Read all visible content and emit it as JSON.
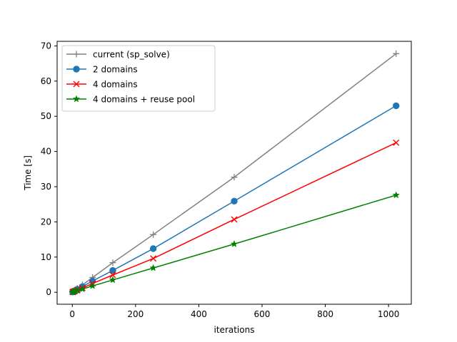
{
  "chart_data": {
    "type": "line",
    "title": "",
    "xlabel": "iterations",
    "ylabel": "Time [s]",
    "xlim": [
      -48,
      1072
    ],
    "ylim": [
      -3.4,
      71.3
    ],
    "xticks": [
      0,
      200,
      400,
      600,
      800,
      1000
    ],
    "yticks": [
      0,
      10,
      20,
      30,
      40,
      50,
      60,
      70
    ],
    "grid": false,
    "legend": "top-left",
    "series": [
      {
        "name": "current (sp_solve)",
        "color": "#808080",
        "marker": "plus",
        "x": [
          1,
          2,
          4,
          8,
          16,
          32,
          64,
          128,
          256,
          512,
          1024
        ],
        "y": [
          0.1,
          0.15,
          0.3,
          0.55,
          1.1,
          2.1,
          4.2,
          8.4,
          16.4,
          32.7,
          67.8
        ]
      },
      {
        "name": "2 domains",
        "color": "#1f77b4",
        "marker": "circle",
        "x": [
          1,
          2,
          4,
          8,
          16,
          32,
          64,
          128,
          256,
          512,
          1024
        ],
        "y": [
          0.08,
          0.12,
          0.25,
          0.45,
          0.85,
          1.6,
          3.2,
          6.2,
          12.4,
          25.9,
          53.0
        ]
      },
      {
        "name": "4 domains",
        "color": "#ff0000",
        "marker": "x",
        "x": [
          1,
          2,
          4,
          8,
          16,
          32,
          64,
          128,
          256,
          512,
          1024
        ],
        "y": [
          0.07,
          0.1,
          0.2,
          0.35,
          0.65,
          1.2,
          2.5,
          4.9,
          9.6,
          20.7,
          42.5
        ]
      },
      {
        "name": "4 domains + reuse pool",
        "color": "#008000",
        "marker": "star",
        "x": [
          1,
          2,
          4,
          8,
          16,
          32,
          64,
          128,
          256,
          512,
          1024
        ],
        "y": [
          0.05,
          0.08,
          0.15,
          0.25,
          0.45,
          0.9,
          1.8,
          3.5,
          6.9,
          13.7,
          27.6
        ]
      }
    ]
  }
}
